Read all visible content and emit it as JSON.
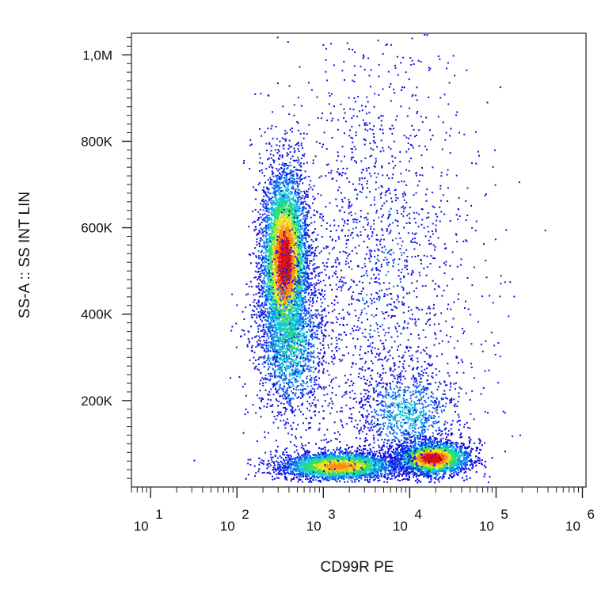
{
  "chart_data": {
    "type": "scatter",
    "subtype": "flow-cytometry density dot plot",
    "title": "",
    "xlabel": "CD99R PE",
    "ylabel": "SS-A :: SS INT LIN",
    "xscale": "log",
    "yscale": "linear",
    "xlim": [
      6,
      1100000
    ],
    "ylim": [
      0,
      1050000
    ],
    "x_ticks": [
      {
        "value": 10,
        "base": "10",
        "exp": "1"
      },
      {
        "value": 100,
        "base": "10",
        "exp": "2"
      },
      {
        "value": 1000,
        "base": "10",
        "exp": "3"
      },
      {
        "value": 10000,
        "base": "10",
        "exp": "4"
      },
      {
        "value": 100000,
        "base": "10",
        "exp": "5"
      },
      {
        "value": 1000000,
        "base": "10",
        "exp": "6"
      }
    ],
    "y_ticks": [
      {
        "value": 200000,
        "label": "200K"
      },
      {
        "value": 400000,
        "label": "400K"
      },
      {
        "value": 600000,
        "label": "600K"
      },
      {
        "value": 800000,
        "label": "800K"
      },
      {
        "value": 1000000,
        "label": "1,0M"
      }
    ],
    "grid": false,
    "legend": "none",
    "density_colormap": [
      "#1010e0",
      "#0a6ef0",
      "#12c8d8",
      "#2ee060",
      "#e8e020",
      "#ff8a10",
      "#e01010"
    ],
    "populations": [
      {
        "x_center": 350,
        "y_center": 520000,
        "x_log_spread": 0.14,
        "y_spread": 110000,
        "count": 5200,
        "peak_density": 1.0
      },
      {
        "x_center": 400,
        "y_center": 340000,
        "x_log_spread": 0.22,
        "y_spread": 90000,
        "count": 1400,
        "peak_density": 0.45
      },
      {
        "x_center": 18000,
        "y_center": 68000,
        "x_log_spread": 0.22,
        "y_spread": 20000,
        "count": 4200,
        "peak_density": 1.0
      },
      {
        "x_center": 1500,
        "y_center": 50000,
        "x_log_spread": 0.35,
        "y_spread": 17000,
        "count": 3600,
        "peak_density": 0.8
      },
      {
        "x_center": 9000,
        "y_center": 170000,
        "x_log_spread": 0.3,
        "y_spread": 55000,
        "count": 900,
        "peak_density": 0.35
      },
      {
        "x_center": 4000,
        "y_center": 500000,
        "x_log_spread": 0.55,
        "y_spread": 280000,
        "count": 1900,
        "peak_density": 0.12
      }
    ]
  }
}
